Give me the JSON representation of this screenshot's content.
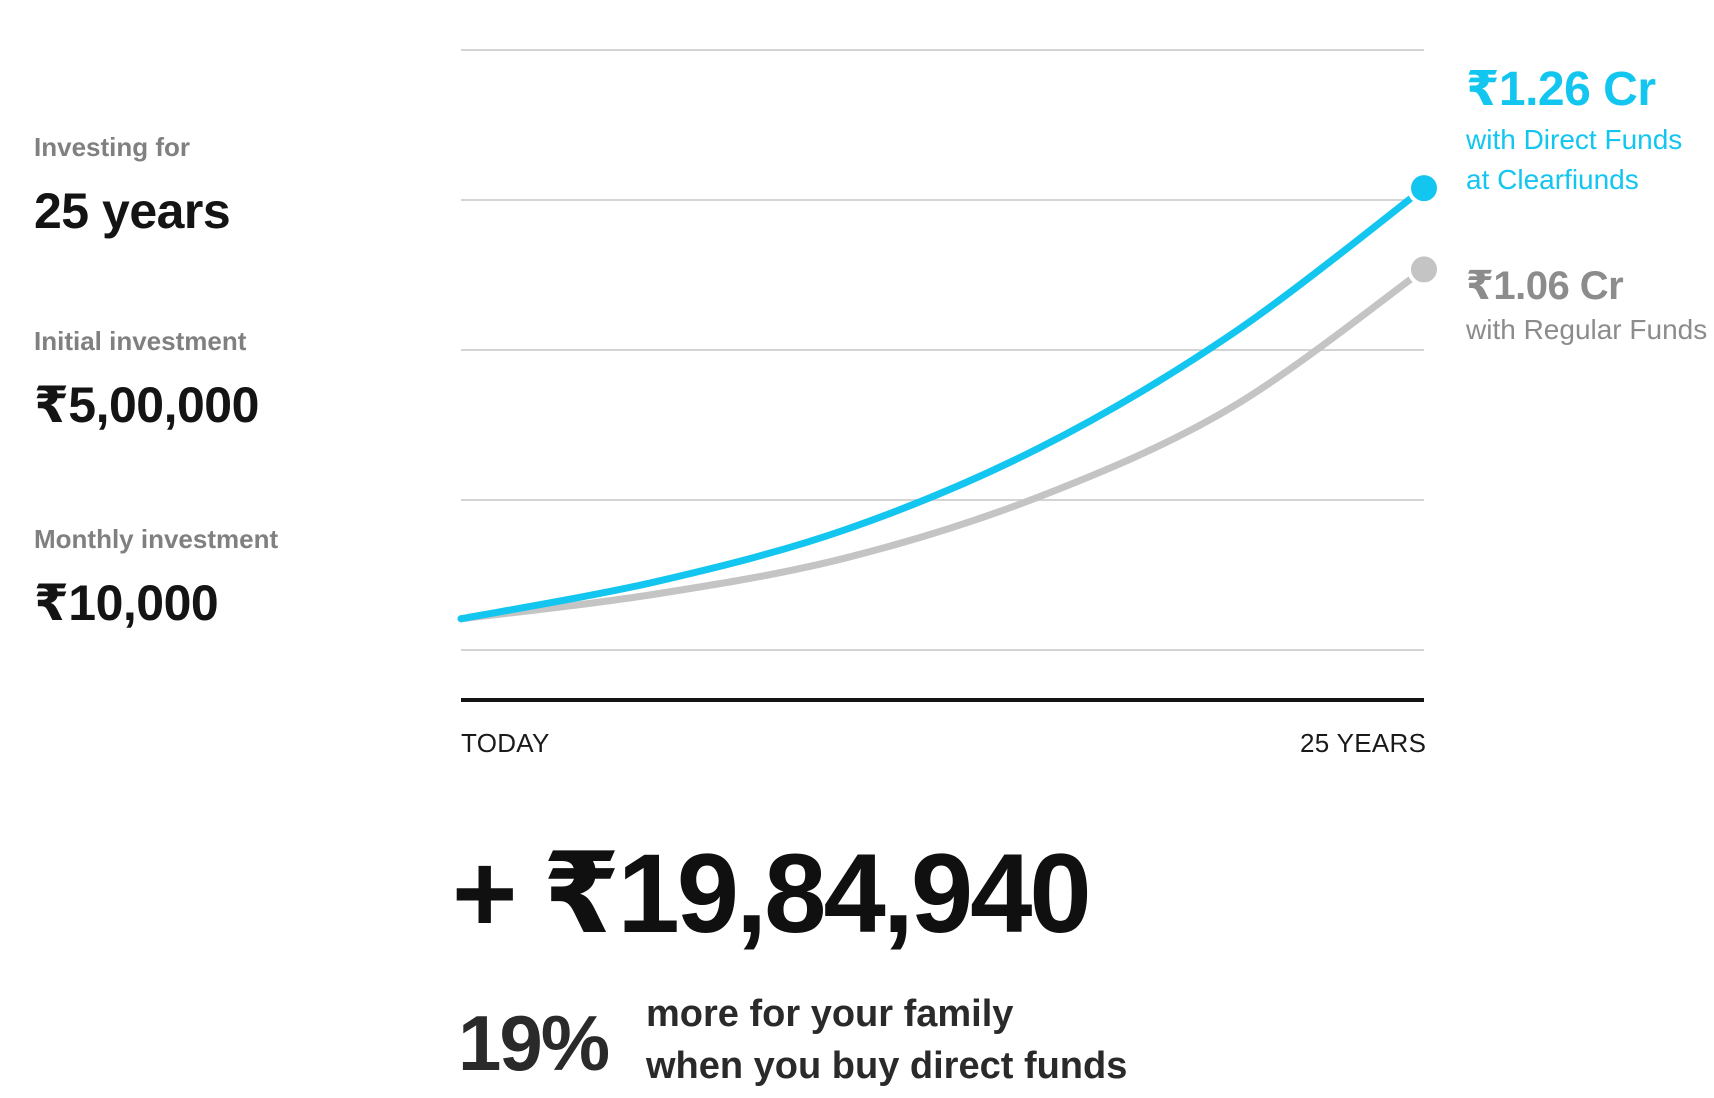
{
  "inputs": [
    {
      "label": "Investing for",
      "value": "25 years"
    },
    {
      "label": "Initial investment",
      "value": "₹5,00,000"
    },
    {
      "label": "Monthly investment",
      "value": "₹10,000"
    }
  ],
  "chart_data": {
    "type": "line",
    "x_start_label": "TODAY",
    "x_end_label": "25 YEARS",
    "xlim": [
      0,
      25
    ],
    "ylim": [
      0,
      1.6
    ],
    "grid": true,
    "series": [
      {
        "name": "with Direct Funds at Clearfiunds",
        "end_label": "₹1.26 Cr",
        "sub_lines": [
          "with Direct Funds",
          "at Clearfiunds"
        ],
        "color": "#12c6f0",
        "start_value": 0.2,
        "end_value": 1.26,
        "x": [
          0,
          5,
          10,
          15,
          20,
          25
        ],
        "values": [
          0.2,
          0.29,
          0.42,
          0.62,
          0.9,
          1.26
        ]
      },
      {
        "name": "with Regular Funds",
        "end_label": "₹1.06 Cr",
        "sub_lines": [
          "with Regular Funds"
        ],
        "color": "#c4c4c4",
        "start_value": 0.2,
        "end_value": 1.06,
        "x": [
          0,
          5,
          10,
          15,
          20,
          25
        ],
        "values": [
          0.2,
          0.26,
          0.35,
          0.5,
          0.72,
          1.06
        ]
      }
    ]
  },
  "summary": {
    "difference": "+ ₹19,84,940",
    "percent": "19%",
    "line1": "more for your family",
    "line2": "when you buy direct funds"
  }
}
